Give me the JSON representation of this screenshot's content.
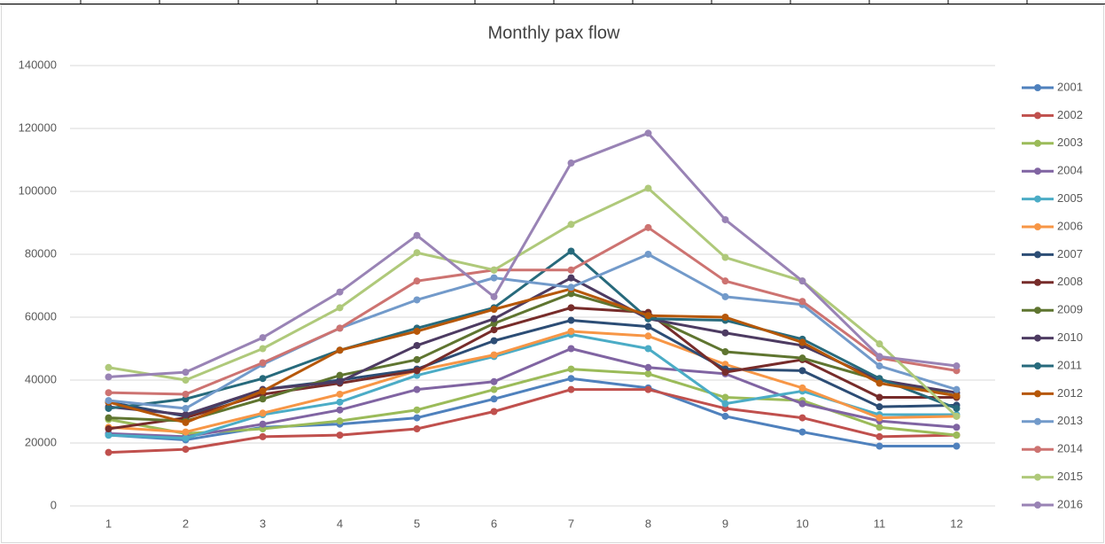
{
  "chart_data": {
    "type": "line",
    "title": "Monthly pax flow",
    "categories": [
      1,
      2,
      3,
      4,
      5,
      6,
      7,
      8,
      9,
      10,
      11,
      12
    ],
    "ylim": [
      0,
      140000
    ],
    "yticks": [
      0,
      20000,
      40000,
      60000,
      80000,
      100000,
      120000,
      140000
    ],
    "grid": true,
    "legend": "right",
    "series": [
      {
        "name": "2001",
        "color": "#4f81bd",
        "values": [
          22500,
          21000,
          25000,
          26000,
          28000,
          34000,
          40500,
          37500,
          28500,
          23500,
          19000,
          19000
        ]
      },
      {
        "name": "2002",
        "color": "#c0504d",
        "values": [
          17000,
          18000,
          22000,
          22500,
          24500,
          30000,
          37000,
          37000,
          31000,
          28000,
          22000,
          22500
        ]
      },
      {
        "name": "2003",
        "color": "#9bbb59",
        "values": [
          27500,
          23000,
          24500,
          27000,
          30500,
          37000,
          43500,
          42000,
          34500,
          33500,
          25000,
          22500
        ]
      },
      {
        "name": "2004",
        "color": "#8064a2",
        "values": [
          23000,
          22000,
          26000,
          30500,
          37000,
          39500,
          50000,
          44000,
          42000,
          32500,
          27000,
          25000
        ]
      },
      {
        "name": "2005",
        "color": "#4bacc6",
        "values": [
          22500,
          21500,
          29000,
          33000,
          41500,
          47500,
          54500,
          50000,
          32500,
          36500,
          29000,
          29000
        ]
      },
      {
        "name": "2006",
        "color": "#f79646",
        "values": [
          25000,
          23500,
          29500,
          35500,
          43000,
          48000,
          55500,
          54000,
          45000,
          37500,
          28000,
          28500
        ]
      },
      {
        "name": "2007",
        "color": "#2c4d75",
        "values": [
          33000,
          28500,
          37000,
          40000,
          43500,
          52500,
          59000,
          57000,
          43500,
          43000,
          31500,
          32000
        ]
      },
      {
        "name": "2008",
        "color": "#772c2a",
        "values": [
          24500,
          28000,
          35500,
          39000,
          43000,
          56000,
          63000,
          61500,
          42500,
          46500,
          34500,
          34500
        ]
      },
      {
        "name": "2009",
        "color": "#5f7530",
        "values": [
          28000,
          27000,
          34000,
          41500,
          46500,
          58000,
          67500,
          60500,
          49000,
          47000,
          40000,
          35000
        ]
      },
      {
        "name": "2010",
        "color": "#4d3b62",
        "values": [
          31500,
          29000,
          37000,
          39500,
          51000,
          59500,
          72500,
          59500,
          55000,
          51000,
          40000,
          36000
        ]
      },
      {
        "name": "2011",
        "color": "#276a7c",
        "values": [
          31000,
          34000,
          40500,
          49500,
          56500,
          63000,
          81000,
          59500,
          59000,
          53000,
          40500,
          31000
        ]
      },
      {
        "name": "2012",
        "color": "#b65708",
        "values": [
          33000,
          26500,
          36500,
          49500,
          55500,
          62500,
          69000,
          60500,
          60000,
          52000,
          39000,
          35000
        ]
      },
      {
        "name": "2013",
        "color": "#729aca",
        "values": [
          33500,
          31000,
          45000,
          56500,
          65500,
          72500,
          69500,
          80000,
          66500,
          64000,
          44500,
          37000
        ]
      },
      {
        "name": "2014",
        "color": "#cd7371",
        "values": [
          36000,
          35500,
          45500,
          56500,
          71500,
          75000,
          75000,
          88500,
          71500,
          65000,
          47000,
          43000
        ]
      },
      {
        "name": "2015",
        "color": "#afc97a",
        "values": [
          44000,
          40000,
          50000,
          63000,
          80500,
          75000,
          89500,
          101000,
          79000,
          71500,
          51500,
          28500
        ]
      },
      {
        "name": "2016",
        "color": "#9983b5",
        "values": [
          41000,
          42500,
          53500,
          68000,
          86000,
          66500,
          109000,
          118500,
          91000,
          71500,
          47500,
          44500
        ]
      }
    ]
  }
}
